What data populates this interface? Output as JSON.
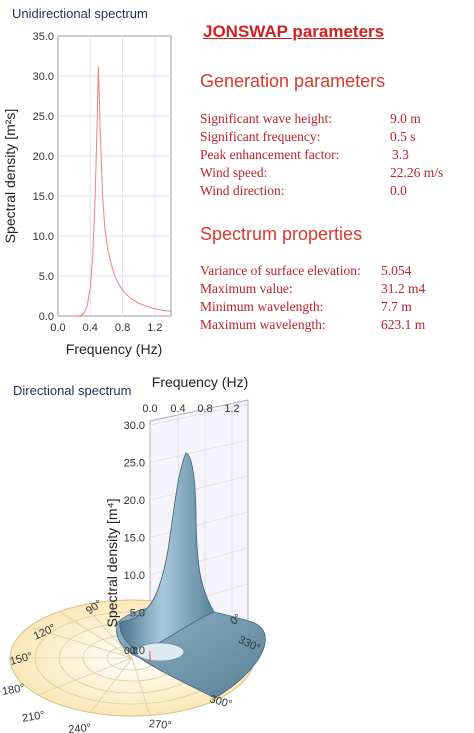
{
  "chart_data": [
    {
      "type": "line",
      "title": "Unidirectional spectrum",
      "xlabel": "Frequency (Hz)",
      "ylabel": "Spectral density [m²s]",
      "xlim": [
        0.0,
        1.4
      ],
      "ylim": [
        0.0,
        35.0
      ],
      "xticks": [
        "0.0",
        "0.4",
        "0.8",
        "1.2"
      ],
      "yticks": [
        "0.0",
        "5.0",
        "10.0",
        "15.0",
        "20.0",
        "25.0",
        "30.0",
        "35.0"
      ],
      "grid": true,
      "color": "#f08080",
      "series": [
        {
          "x": [
            0.2,
            0.28,
            0.32,
            0.36,
            0.4,
            0.43,
            0.46,
            0.48,
            0.5,
            0.52,
            0.55,
            0.58,
            0.62,
            0.66,
            0.7,
            0.75,
            0.8,
            0.9,
            1.0,
            1.1,
            1.2,
            1.3,
            1.4
          ],
          "values": [
            0.0,
            0.05,
            0.3,
            1.2,
            3.5,
            7.5,
            14.5,
            22.0,
            31.2,
            24.0,
            15.5,
            11.0,
            8.2,
            6.4,
            5.1,
            4.0,
            3.2,
            2.2,
            1.6,
            1.2,
            0.9,
            0.7,
            0.6
          ]
        }
      ]
    },
    {
      "type": "surface",
      "title": "Directional spectrum",
      "xlabel": "Frequency (Hz)",
      "ylabel": "Spectral density [m⁴]",
      "freq_ticks": [
        "0.0",
        "0.4",
        "0.8",
        "1.2"
      ],
      "z_ticks": [
        "0.0",
        "5.0",
        "10.0",
        "15.0",
        "20.0",
        "25.0",
        "30.0"
      ],
      "zlim": [
        0.0,
        30.0
      ],
      "angle_labels": [
        "0°",
        "90°",
        "120°",
        "150°",
        "180°",
        "210°",
        "240°",
        "270°",
        "300°",
        "330°"
      ],
      "polar_center_label": "0.0",
      "peak_frequency": 0.5,
      "peak_value": 31.2,
      "surface_color": "#6f9bb3"
    }
  ],
  "params": {
    "heading": "JONSWAP parameters",
    "generation": {
      "heading": "Generation parameters",
      "rows": [
        {
          "label": "Significant wave height:",
          "value": "9.0 m"
        },
        {
          "label": "Significant frequency:",
          "value": "0.5 s"
        },
        {
          "label": "Peak enhancement factor:",
          "value": "3.3"
        },
        {
          "label": "Wind speed:",
          "value": "22.26 m/s"
        },
        {
          "label": "Wind direction:",
          "value": "0.0"
        }
      ]
    },
    "properties": {
      "heading": "Spectrum properties",
      "rows": [
        {
          "label": "Variance of surface elevation:",
          "value": "5.054"
        },
        {
          "label": "Maximum value:",
          "value": "31.2 m4"
        },
        {
          "label": "Minimum wavelength:",
          "value": "7.7 m"
        },
        {
          "label": "Maximum wavelength:",
          "value": "623.1 m"
        }
      ]
    }
  }
}
